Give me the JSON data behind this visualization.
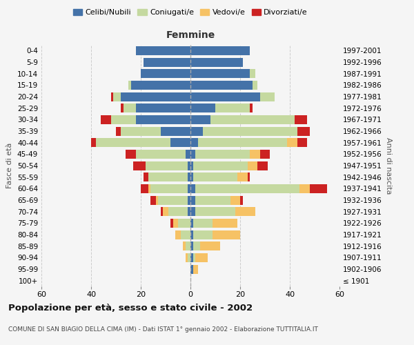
{
  "age_groups": [
    "100+",
    "95-99",
    "90-94",
    "85-89",
    "80-84",
    "75-79",
    "70-74",
    "65-69",
    "60-64",
    "55-59",
    "50-54",
    "45-49",
    "40-44",
    "35-39",
    "30-34",
    "25-29",
    "20-24",
    "15-19",
    "10-14",
    "5-9",
    "0-4"
  ],
  "birth_years": [
    "≤ 1901",
    "1902-1906",
    "1907-1911",
    "1912-1916",
    "1917-1921",
    "1922-1926",
    "1927-1931",
    "1932-1936",
    "1937-1941",
    "1942-1946",
    "1947-1951",
    "1952-1956",
    "1957-1961",
    "1962-1966",
    "1967-1971",
    "1972-1976",
    "1977-1981",
    "1982-1986",
    "1987-1991",
    "1992-1996",
    "1997-2001"
  ],
  "male": {
    "celibi": [
      0,
      0,
      0,
      0,
      0,
      0,
      1,
      1,
      1,
      1,
      1,
      2,
      8,
      12,
      22,
      22,
      28,
      24,
      20,
      19,
      22
    ],
    "coniugati": [
      0,
      0,
      1,
      2,
      4,
      5,
      8,
      12,
      15,
      16,
      17,
      20,
      30,
      16,
      10,
      5,
      3,
      1,
      0,
      0,
      0
    ],
    "vedovi": [
      0,
      0,
      1,
      1,
      2,
      2,
      2,
      1,
      1,
      0,
      0,
      0,
      0,
      0,
      0,
      0,
      0,
      0,
      0,
      0,
      0
    ],
    "divorziati": [
      0,
      0,
      0,
      0,
      0,
      1,
      1,
      2,
      3,
      2,
      5,
      4,
      2,
      2,
      4,
      1,
      1,
      0,
      0,
      0,
      0
    ]
  },
  "female": {
    "nubili": [
      0,
      1,
      1,
      1,
      1,
      1,
      2,
      2,
      2,
      1,
      1,
      2,
      3,
      5,
      8,
      10,
      28,
      25,
      24,
      21,
      24
    ],
    "coniugate": [
      0,
      0,
      1,
      3,
      8,
      8,
      16,
      14,
      42,
      18,
      22,
      22,
      36,
      38,
      34,
      14,
      6,
      2,
      2,
      0,
      0
    ],
    "vedove": [
      0,
      2,
      5,
      8,
      11,
      10,
      8,
      4,
      4,
      4,
      4,
      4,
      4,
      0,
      0,
      0,
      0,
      0,
      0,
      0,
      0
    ],
    "divorziate": [
      0,
      0,
      0,
      0,
      0,
      0,
      0,
      1,
      7,
      1,
      4,
      4,
      4,
      5,
      5,
      1,
      0,
      0,
      0,
      0,
      0
    ]
  },
  "colors": {
    "celibi": "#4472a8",
    "coniugati": "#c5d9a0",
    "vedovi": "#f6c265",
    "divorziati": "#cc2222"
  },
  "title": "Popolazione per età, sesso e stato civile - 2002",
  "subtitle": "COMUNE DI SAN BIAGIO DELLA CIMA (IM) - Dati ISTAT 1° gennaio 2002 - Elaborazione TUTTITALIA.IT",
  "xlim": 60,
  "background_color": "#f5f5f5",
  "grid_color": "#cccccc"
}
